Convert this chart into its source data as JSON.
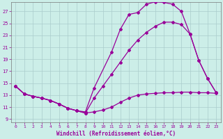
{
  "background_color": "#cceee8",
  "line_color": "#990099",
  "grid_color": "#aacccc",
  "xlabel": "Windchill (Refroidissement éolien,°C)",
  "xlabel_color": "#990099",
  "tick_color": "#990099",
  "xlim": [
    -0.5,
    23.5
  ],
  "ylim": [
    8.5,
    28.5
  ],
  "yticks": [
    9,
    11,
    13,
    15,
    17,
    19,
    21,
    23,
    25,
    27
  ],
  "xticks": [
    0,
    1,
    2,
    3,
    4,
    5,
    6,
    7,
    8,
    9,
    10,
    11,
    12,
    13,
    14,
    15,
    16,
    17,
    18,
    19,
    20,
    21,
    22,
    23
  ],
  "line1_x": [
    0,
    1,
    2,
    3,
    4,
    5,
    6,
    7,
    8,
    9,
    11,
    12,
    13,
    14,
    15,
    16,
    17,
    18,
    19,
    20,
    21,
    22,
    23
  ],
  "line1_y": [
    14.5,
    13.2,
    12.8,
    12.5,
    12.1,
    11.5,
    10.8,
    10.4,
    10.2,
    14.2,
    20.2,
    24.0,
    26.5,
    26.8,
    28.2,
    28.6,
    28.5,
    28.2,
    27.0,
    23.2,
    18.8,
    15.8,
    13.4
  ],
  "line2_x": [
    0,
    1,
    2,
    3,
    4,
    5,
    6,
    7,
    8,
    9,
    10,
    11,
    12,
    13,
    14,
    15,
    16,
    17,
    18,
    19,
    20,
    21,
    22,
    23
  ],
  "line2_y": [
    14.5,
    13.2,
    12.8,
    12.5,
    12.1,
    11.5,
    10.8,
    10.4,
    10.0,
    12.5,
    14.5,
    16.5,
    18.5,
    20.5,
    22.2,
    23.5,
    24.5,
    25.2,
    25.2,
    24.8,
    23.2,
    18.8,
    15.8,
    13.4
  ],
  "line3_x": [
    0,
    1,
    2,
    3,
    4,
    5,
    6,
    7,
    8,
    9,
    10,
    11,
    12,
    13,
    14,
    15,
    16,
    17,
    18,
    19,
    20,
    21,
    22,
    23
  ],
  "line3_y": [
    14.5,
    13.2,
    12.8,
    12.5,
    12.1,
    11.5,
    10.8,
    10.4,
    10.0,
    10.2,
    10.5,
    11.0,
    11.8,
    12.5,
    13.0,
    13.2,
    13.3,
    13.4,
    13.4,
    13.5,
    13.5,
    13.4,
    13.4,
    13.3
  ]
}
